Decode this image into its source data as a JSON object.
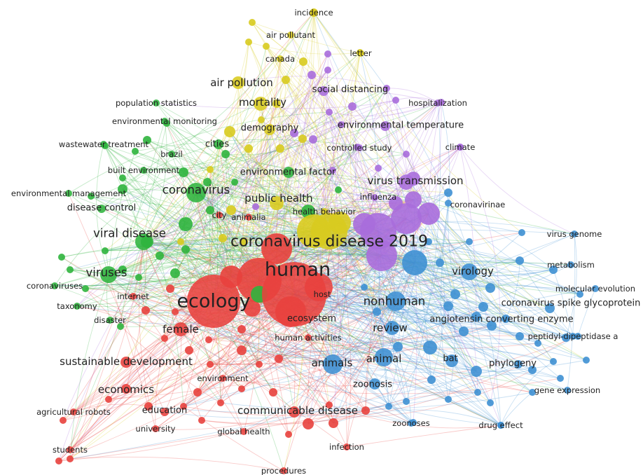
{
  "colors": {
    "red": "#e8413d",
    "green": "#2fb43d",
    "yellow": "#d8cb1f",
    "purple": "#a86ddc",
    "blue": "#3e90d3"
  },
  "nodes": [
    {
      "id": "human",
      "label": "human",
      "c": "red",
      "tier": 6
    },
    {
      "id": "ecology",
      "label": "ecology",
      "c": "red",
      "tier": 6
    },
    {
      "id": "host",
      "label": "host",
      "c": "red",
      "tier": 1
    },
    {
      "id": "ecosystem",
      "label": "ecosystem",
      "c": "red",
      "tier": 2
    },
    {
      "id": "female",
      "label": "female",
      "c": "red",
      "tier": 3
    },
    {
      "id": "human_activities",
      "label": "human activities",
      "c": "red",
      "tier": 1
    },
    {
      "id": "sustainable_development",
      "label": "sustainable development",
      "c": "red",
      "tier": 3
    },
    {
      "id": "environment",
      "label": "environment",
      "c": "red",
      "tier": 1
    },
    {
      "id": "economics",
      "label": "economics",
      "c": "red",
      "tier": 3
    },
    {
      "id": "education",
      "label": "education",
      "c": "red",
      "tier": 2
    },
    {
      "id": "university",
      "label": "university",
      "c": "red",
      "tier": 1
    },
    {
      "id": "communicable_disease",
      "label": "communicable disease",
      "c": "red",
      "tier": 3
    },
    {
      "id": "global_health",
      "label": "global health",
      "c": "red",
      "tier": 1
    },
    {
      "id": "infection",
      "label": "infection",
      "c": "red",
      "tier": 1
    },
    {
      "id": "agricultural_robots",
      "label": "agricultural robots",
      "c": "red",
      "tier": 1
    },
    {
      "id": "students",
      "label": "students",
      "c": "red",
      "tier": 1
    },
    {
      "id": "procedures",
      "label": "procedures",
      "c": "red",
      "tier": 1
    },
    {
      "id": "internet",
      "label": "internet",
      "c": "red",
      "tier": 1
    },
    {
      "id": "animalia",
      "label": "animalia",
      "c": "red",
      "tier": 1
    },
    {
      "id": "city",
      "label": "city",
      "c": "red",
      "tier": 1
    },
    {
      "id": "coronavirus",
      "label": "coronavirus",
      "c": "green",
      "tier": 4
    },
    {
      "id": "viral_disease",
      "label": "viral disease",
      "c": "green",
      "tier": 4
    },
    {
      "id": "viruses",
      "label": "viruses",
      "c": "green",
      "tier": 4
    },
    {
      "id": "disease_control",
      "label": "disease control",
      "c": "green",
      "tier": 2
    },
    {
      "id": "environmental_management",
      "label": "environmental management",
      "c": "green",
      "tier": 1
    },
    {
      "id": "built_environment",
      "label": "built environment",
      "c": "green",
      "tier": 1
    },
    {
      "id": "wastewater_treatment",
      "label": "wastewater treatment",
      "c": "green",
      "tier": 1
    },
    {
      "id": "brazil",
      "label": "brazil",
      "c": "green",
      "tier": 1
    },
    {
      "id": "environmental_monitoring",
      "label": "environmental monitoring",
      "c": "green",
      "tier": 1
    },
    {
      "id": "population_statistics",
      "label": "population statistics",
      "c": "green",
      "tier": 1
    },
    {
      "id": "cities",
      "label": "cities",
      "c": "green",
      "tier": 2
    },
    {
      "id": "environmental_factor",
      "label": "environmental factor",
      "c": "green",
      "tier": 2
    },
    {
      "id": "coronaviruses",
      "label": "coronaviruses",
      "c": "green",
      "tier": 1
    },
    {
      "id": "taxonomy",
      "label": "taxonomy",
      "c": "green",
      "tier": 1
    },
    {
      "id": "disaster",
      "label": "disaster",
      "c": "green",
      "tier": 1
    },
    {
      "id": "air_pollution",
      "label": "air pollution",
      "c": "yellow",
      "tier": 3
    },
    {
      "id": "mortality",
      "label": "mortality",
      "c": "yellow",
      "tier": 3
    },
    {
      "id": "demography",
      "label": "demography",
      "c": "yellow",
      "tier": 2
    },
    {
      "id": "air_pollutant",
      "label": "air pollutant",
      "c": "yellow",
      "tier": 1
    },
    {
      "id": "canada",
      "label": "canada",
      "c": "yellow",
      "tier": 1
    },
    {
      "id": "incidence",
      "label": "incidence",
      "c": "yellow",
      "tier": 1
    },
    {
      "id": "public_health",
      "label": "public health",
      "c": "yellow",
      "tier": 3
    },
    {
      "id": "health_behavior",
      "label": "health behavior",
      "c": "yellow",
      "tier": 1
    },
    {
      "id": "covid2019",
      "label": "coronavirus disease 2019",
      "c": "yellow",
      "tier": 5
    },
    {
      "id": "letter",
      "label": "letter",
      "c": "yellow",
      "tier": 1
    },
    {
      "id": "social_distancing",
      "label": "social distancing",
      "c": "purple",
      "tier": 2
    },
    {
      "id": "hospitalization",
      "label": "hospitalization",
      "c": "purple",
      "tier": 1
    },
    {
      "id": "environmental_temperature",
      "label": "environmental temperature",
      "c": "purple",
      "tier": 2
    },
    {
      "id": "controlled_study",
      "label": "controlled study",
      "c": "purple",
      "tier": 1
    },
    {
      "id": "climate",
      "label": "climate",
      "c": "purple",
      "tier": 1
    },
    {
      "id": "virus_transmission",
      "label": "virus transmission",
      "c": "purple",
      "tier": 3
    },
    {
      "id": "influenza",
      "label": "influenza",
      "c": "purple",
      "tier": 1
    },
    {
      "id": "coronavirinae",
      "label": "coronavirinae",
      "c": "blue",
      "tier": 1
    },
    {
      "id": "virus_genome",
      "label": "virus genome",
      "c": "blue",
      "tier": 1
    },
    {
      "id": "virology",
      "label": "virology",
      "c": "blue",
      "tier": 3
    },
    {
      "id": "metabolism",
      "label": "metabolism",
      "c": "blue",
      "tier": 1
    },
    {
      "id": "molecular_evolution",
      "label": "molecular evolution",
      "c": "blue",
      "tier": 1
    },
    {
      "id": "spike_glycoprotein",
      "label": "coronavirus spike glycoprotein",
      "c": "blue",
      "tier": 2
    },
    {
      "id": "nonhuman",
      "label": "nonhuman",
      "c": "blue",
      "tier": 4
    },
    {
      "id": "ace",
      "label": "angiotensin converting enzyme",
      "c": "blue",
      "tier": 2
    },
    {
      "id": "peptidyl",
      "label": "peptidyl-dipeptidase a",
      "c": "blue",
      "tier": 1
    },
    {
      "id": "review",
      "label": "review",
      "c": "blue",
      "tier": 3
    },
    {
      "id": "animals",
      "label": "animals",
      "c": "blue",
      "tier": 3
    },
    {
      "id": "animal",
      "label": "animal",
      "c": "blue",
      "tier": 3
    },
    {
      "id": "bat",
      "label": "bat",
      "c": "blue",
      "tier": 2
    },
    {
      "id": "phylogeny",
      "label": "phylogeny",
      "c": "blue",
      "tier": 2
    },
    {
      "id": "zoonosis",
      "label": "zoonosis",
      "c": "blue",
      "tier": 2
    },
    {
      "id": "gene_expression",
      "label": "gene expression",
      "c": "blue",
      "tier": 1
    },
    {
      "id": "zoonoses",
      "label": "zoonoses",
      "c": "blue",
      "tier": 1
    },
    {
      "id": "drug_effect",
      "label": "drug effect",
      "c": "blue",
      "tier": 1
    }
  ]
}
